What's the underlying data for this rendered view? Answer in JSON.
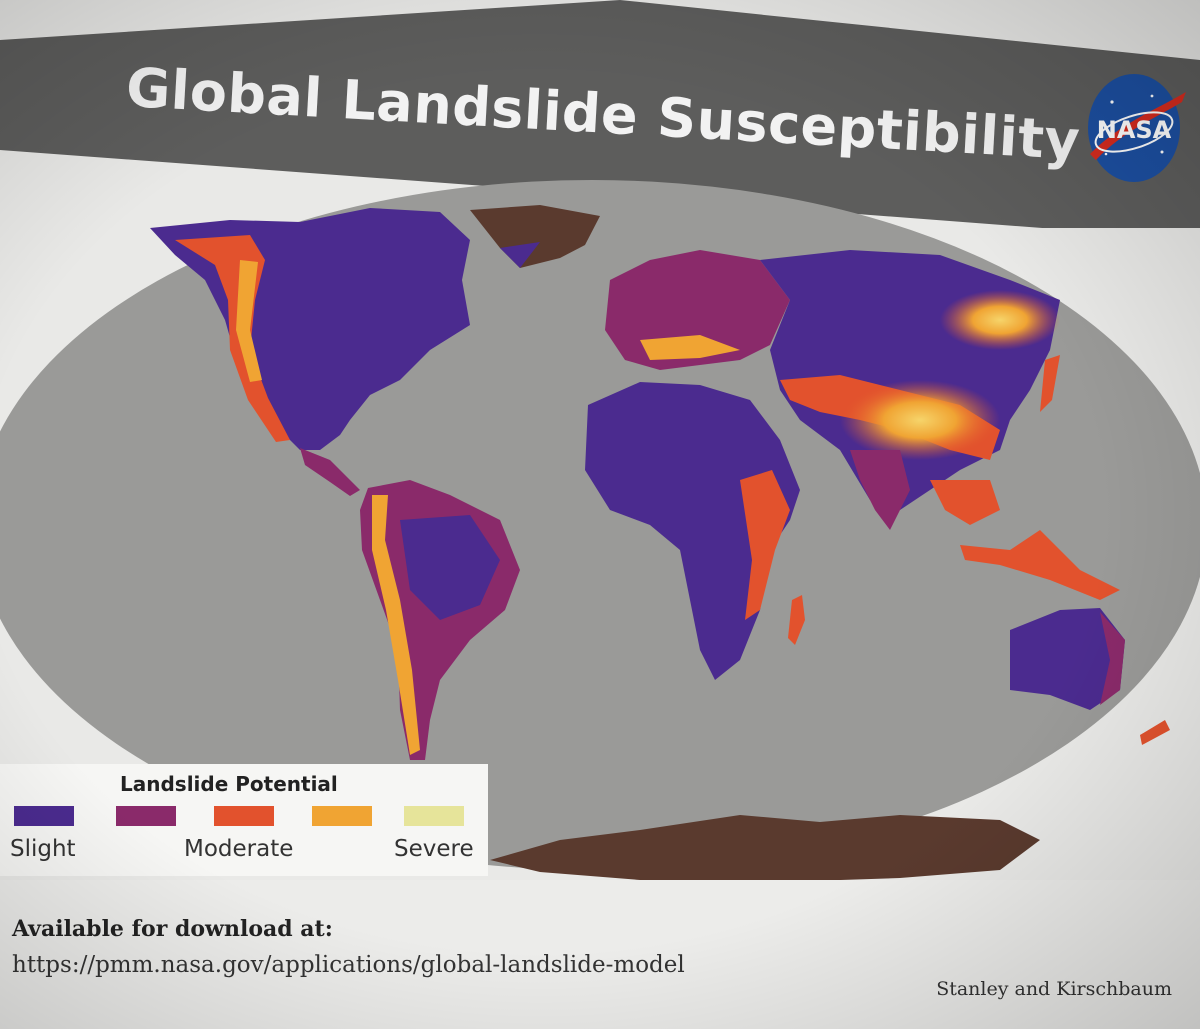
{
  "slide": {
    "title": "Global Landslide Susceptibility",
    "logo_text": "NASA",
    "legend": {
      "title": "Landslide Potential",
      "swatches": [
        {
          "color": "#4b2b8f"
        },
        {
          "color": "#8a2a6a"
        },
        {
          "color": "#e2522d"
        },
        {
          "color": "#f0a433"
        },
        {
          "color": "#e6e49a"
        }
      ],
      "labels": {
        "low": "Slight",
        "mid": "Moderate",
        "high": "Severe"
      }
    },
    "download_label": "Available for download at:",
    "download_url": "https://pmm.nasa.gov/applications/global-landslide-model",
    "credit": "Stanley and Kirschbaum"
  },
  "colors": {
    "title_bar": "#5d5d5c",
    "ocean": "#9a9a98",
    "land_slight": "#4b2b8f",
    "land_moderate": "#8a2a6a",
    "land_high": "#e2522d",
    "antarctica": "#5a3a2e",
    "nasa_blue": "#1c4fa1",
    "nasa_red": "#d52b1e"
  }
}
